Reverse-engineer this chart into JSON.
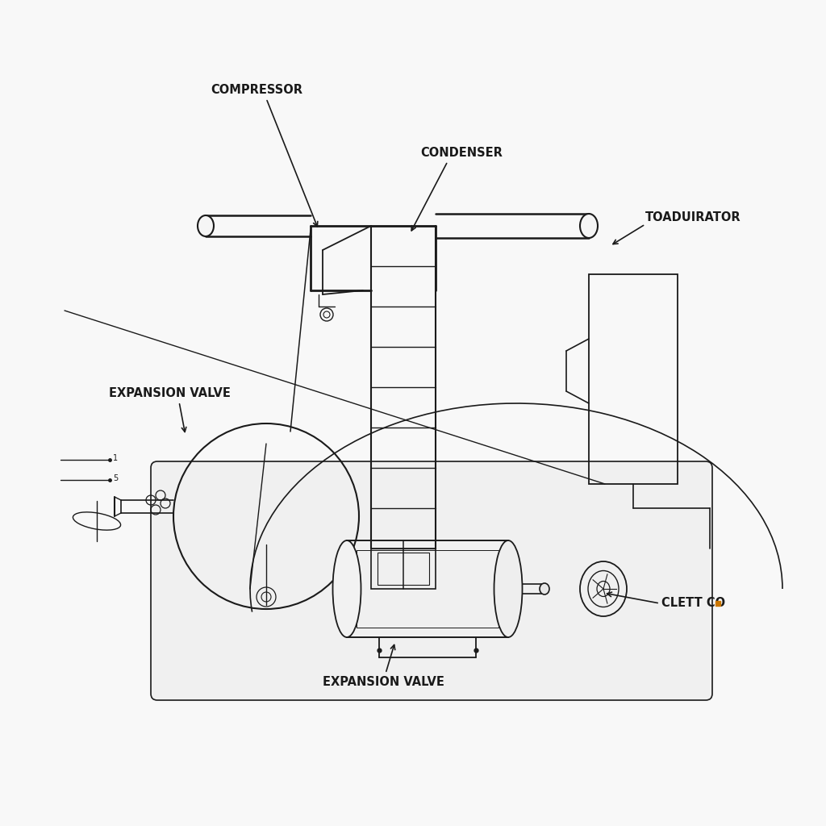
{
  "background_color": "#f8f8f8",
  "line_color": "#1a1a1a",
  "text_color": "#1a1a1a",
  "labels": {
    "compressor": "COMPRESSOR",
    "condenser": "CONDENSER",
    "toaduirator": "TOADUIRATOR",
    "expansion_valve_top": "EXPANSION VALVE",
    "expansion_valve_bottom": "EXPANSION VALVE",
    "clett_co": "CLETT CO"
  },
  "orange_dot_color": "#cc7700",
  "line_width": 1.2,
  "font_size": 10.5
}
